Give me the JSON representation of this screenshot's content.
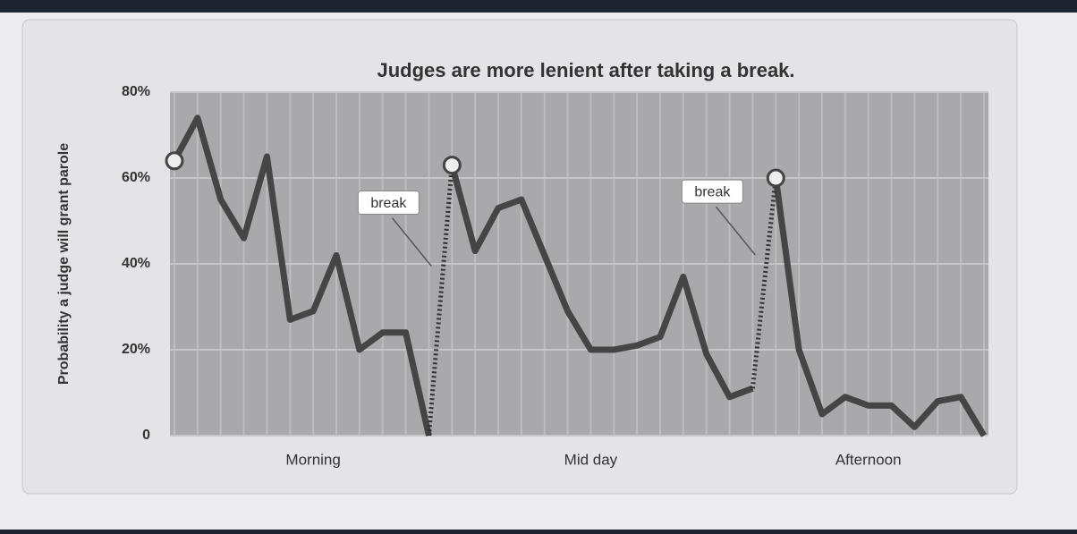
{
  "chart_data": {
    "type": "line",
    "title": "Judges are more lenient after taking a break.",
    "y_label": "Probability a judge will grant parole",
    "categories": [
      null,
      null,
      null,
      null,
      null,
      null,
      "Morning",
      null,
      null,
      null,
      null,
      null,
      null,
      null,
      null,
      null,
      null,
      null,
      "Mid day",
      null,
      null,
      null,
      null,
      null,
      null,
      null,
      null,
      null,
      null,
      null,
      "Afternoon",
      null,
      null,
      null,
      null,
      null
    ],
    "series": [
      {
        "color": "#454545",
        "values": [
          64,
          74,
          55,
          46,
          65,
          27,
          29,
          42,
          20,
          24,
          24,
          0,
          null,
          null,
          null,
          null,
          null,
          null,
          null,
          null,
          null,
          null,
          null,
          null,
          null,
          null,
          null,
          null,
          null,
          null,
          null,
          null,
          null,
          null,
          null,
          null
        ]
      },
      {
        "color": "#454545",
        "values": [
          null,
          null,
          null,
          null,
          null,
          null,
          null,
          null,
          null,
          null,
          null,
          null,
          63,
          43,
          53,
          55,
          42,
          29,
          20,
          20,
          21,
          23,
          37,
          19,
          9,
          11,
          null,
          null,
          null,
          null,
          null,
          null,
          null,
          null,
          null,
          null
        ]
      },
      {
        "color": "#454545",
        "values": [
          null,
          null,
          null,
          null,
          null,
          null,
          null,
          null,
          null,
          null,
          null,
          null,
          null,
          null,
          null,
          null,
          null,
          null,
          null,
          null,
          null,
          null,
          null,
          null,
          null,
          null,
          60,
          20,
          5,
          9,
          7,
          7,
          2,
          8,
          9,
          0
        ]
      }
    ],
    "annotations": [
      {
        "text": "break"
      },
      {
        "text": "break"
      }
    ],
    "ylim": [
      0,
      80
    ],
    "yticks": [
      0,
      {
        "value": 20,
        "label": "20%"
      },
      {
        "value": 40,
        "label": "40%"
      },
      {
        "value": 60,
        "label": "60%"
      },
      {
        "value": 80,
        "label": "80%"
      }
    ],
    "grid": true
  }
}
